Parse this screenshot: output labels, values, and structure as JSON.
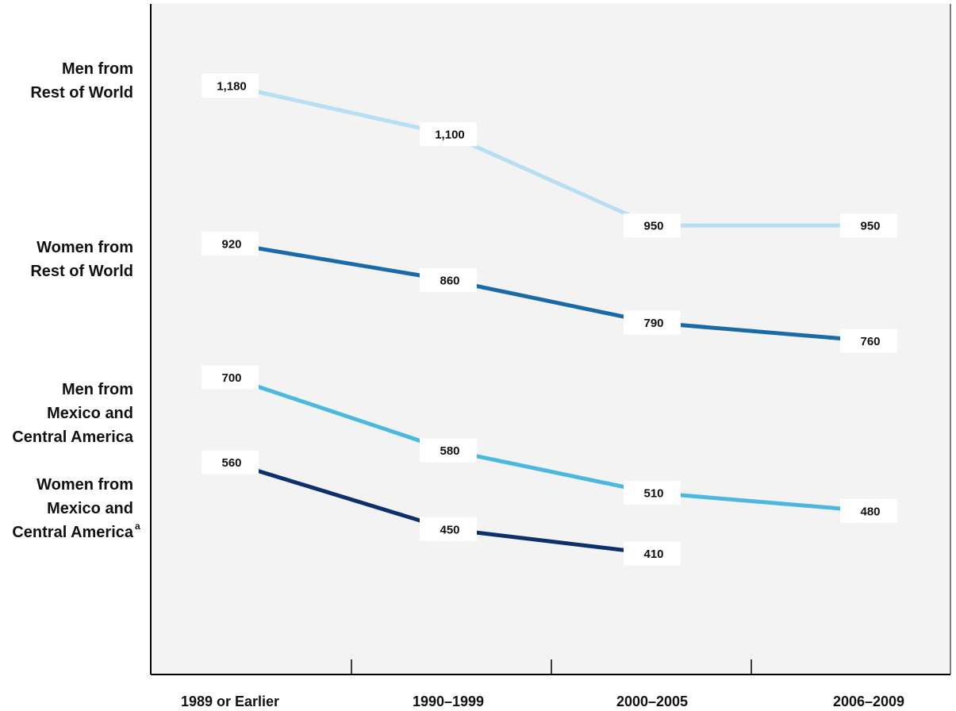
{
  "chart_data": {
    "type": "line",
    "title": "",
    "xlabel": "",
    "ylabel": "",
    "categories": [
      "1989 or Earlier",
      "1990–1999",
      "2000–2005",
      "2006–2009"
    ],
    "ylim": [
      250,
      1300
    ],
    "grid": false,
    "legend_placement": "left",
    "series": [
      {
        "name_lines": [
          "Men from",
          "Rest of World"
        ],
        "footnote": "",
        "values": [
          1180,
          1100,
          950,
          950
        ],
        "labels": [
          "1,180",
          "1,100",
          "950",
          "950"
        ],
        "color": "#b7dff4"
      },
      {
        "name_lines": [
          "Women from",
          "Rest of World"
        ],
        "footnote": "",
        "values": [
          920,
          860,
          790,
          760
        ],
        "labels": [
          "920",
          "860",
          "790",
          "760"
        ],
        "color": "#1a6aa8"
      },
      {
        "name_lines": [
          "Men from",
          "Mexico and",
          "Central America"
        ],
        "footnote": "",
        "values": [
          700,
          580,
          510,
          480
        ],
        "labels": [
          "700",
          "580",
          "510",
          "480"
        ],
        "color": "#4bb8e0"
      },
      {
        "name_lines": [
          "Women from",
          "Mexico and",
          "Central America"
        ],
        "footnote": "a",
        "values": [
          560,
          450,
          410,
          null
        ],
        "labels": [
          "560",
          "450",
          "410",
          ""
        ],
        "color": "#0d2f6b"
      }
    ],
    "plot_background": "#f3f3f3",
    "axis_color": "#000000"
  }
}
